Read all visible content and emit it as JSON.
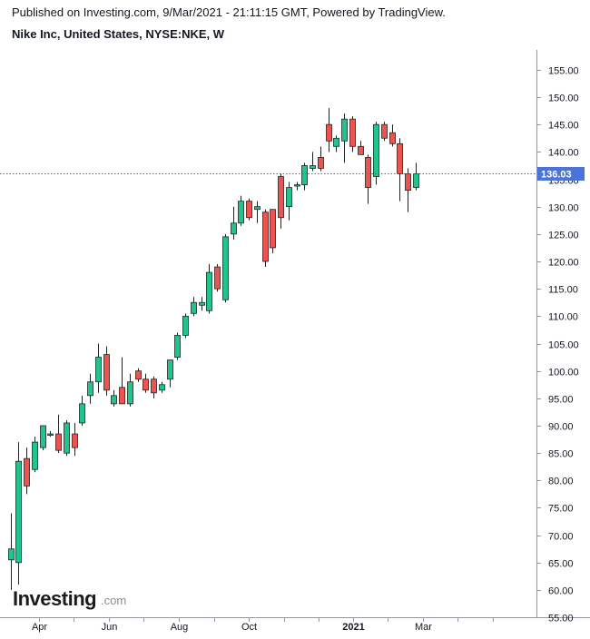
{
  "header": {
    "published": "Published on Investing.com, 9/Mar/2021 - 21:11:15 GMT, Powered by TradingView.",
    "instrument": "Nike Inc, United States, NYSE:NKE, W"
  },
  "watermark": {
    "brand": "Investing",
    "suffix": ".com"
  },
  "colors": {
    "up": "#26a69a",
    "up_fill": "#1fc58a",
    "down_fill": "#ef5350",
    "wick": "#222222",
    "price_line": "#2962ff",
    "price_label_bg": "#4a74d9"
  },
  "chart_data": {
    "type": "candlestick",
    "title": "Nike Inc, United States, NYSE:NKE, W",
    "y_axis": {
      "position": "right",
      "ticks": [
        55,
        60,
        65,
        70,
        75,
        80,
        85,
        90,
        95,
        100,
        105,
        110,
        115,
        120,
        125,
        130,
        135,
        140,
        145,
        150,
        155
      ],
      "ylim": [
        55,
        156
      ]
    },
    "x_axis": {
      "labels": [
        {
          "text": "Apr",
          "week_index": 3.6,
          "bold": false
        },
        {
          "text": "Jun",
          "week_index": 12.4,
          "bold": false
        },
        {
          "text": "Aug",
          "week_index": 21.2,
          "bold": false
        },
        {
          "text": "Oct",
          "week_index": 30.0,
          "bold": false
        },
        {
          "text": "2021",
          "week_index": 43.1,
          "bold": true
        },
        {
          "text": "Mar",
          "week_index": 51.9,
          "bold": false
        }
      ]
    },
    "current_price": 136.03,
    "current_price_label": "136.03",
    "candles": [
      {
        "o": 65.5,
        "h": 74.0,
        "l": 60.0,
        "c": 67.5
      },
      {
        "o": 65.0,
        "h": 87.0,
        "l": 61.0,
        "c": 83.5
      },
      {
        "o": 84.0,
        "h": 86.0,
        "l": 77.5,
        "c": 79.0
      },
      {
        "o": 82.0,
        "h": 88.0,
        "l": 81.5,
        "c": 87.0
      },
      {
        "o": 86.0,
        "h": 90.0,
        "l": 85.5,
        "c": 90.0
      },
      {
        "o": 88.5,
        "h": 89.0,
        "l": 88.0,
        "c": 88.5
      },
      {
        "o": 88.5,
        "h": 92.0,
        "l": 85.0,
        "c": 85.5
      },
      {
        "o": 85.0,
        "h": 91.0,
        "l": 84.5,
        "c": 90.5
      },
      {
        "o": 88.5,
        "h": 90.5,
        "l": 84.5,
        "c": 86.0
      },
      {
        "o": 90.5,
        "h": 95.5,
        "l": 90.0,
        "c": 94.0
      },
      {
        "o": 95.5,
        "h": 99.5,
        "l": 94.0,
        "c": 98.0
      },
      {
        "o": 98.0,
        "h": 105.0,
        "l": 96.0,
        "c": 102.5
      },
      {
        "o": 103.0,
        "h": 104.5,
        "l": 95.5,
        "c": 96.5
      },
      {
        "o": 94.0,
        "h": 96.5,
        "l": 93.5,
        "c": 95.5
      },
      {
        "o": 97.0,
        "h": 102.5,
        "l": 94.0,
        "c": 94.0
      },
      {
        "o": 94.0,
        "h": 99.5,
        "l": 93.5,
        "c": 98.0
      },
      {
        "o": 100.0,
        "h": 100.5,
        "l": 98.0,
        "c": 98.5
      },
      {
        "o": 98.5,
        "h": 99.5,
        "l": 96.0,
        "c": 96.5
      },
      {
        "o": 98.5,
        "h": 99.0,
        "l": 95.0,
        "c": 96.0
      },
      {
        "o": 96.5,
        "h": 98.0,
        "l": 96.0,
        "c": 97.5
      },
      {
        "o": 98.5,
        "h": 102.0,
        "l": 97.0,
        "c": 102.0
      },
      {
        "o": 102.5,
        "h": 107.0,
        "l": 102.0,
        "c": 106.5
      },
      {
        "o": 106.5,
        "h": 110.5,
        "l": 106.0,
        "c": 110.0
      },
      {
        "o": 110.5,
        "h": 113.5,
        "l": 110.0,
        "c": 112.5
      },
      {
        "o": 112.0,
        "h": 113.5,
        "l": 111.0,
        "c": 112.5
      },
      {
        "o": 111.0,
        "h": 119.5,
        "l": 110.5,
        "c": 118.0
      },
      {
        "o": 119.0,
        "h": 119.5,
        "l": 114.5,
        "c": 115.0
      },
      {
        "o": 113.0,
        "h": 125.0,
        "l": 112.5,
        "c": 124.5
      },
      {
        "o": 125.0,
        "h": 130.0,
        "l": 124.0,
        "c": 127.0
      },
      {
        "o": 127.0,
        "h": 132.0,
        "l": 126.5,
        "c": 131.0
      },
      {
        "o": 131.0,
        "h": 131.5,
        "l": 127.5,
        "c": 128.0
      },
      {
        "o": 129.5,
        "h": 131.0,
        "l": 127.0,
        "c": 130.0
      },
      {
        "o": 129.0,
        "h": 129.5,
        "l": 119.0,
        "c": 120.0
      },
      {
        "o": 129.5,
        "h": 129.5,
        "l": 121.5,
        "c": 122.5
      },
      {
        "o": 135.5,
        "h": 136.0,
        "l": 126.0,
        "c": 128.0
      },
      {
        "o": 130.0,
        "h": 134.5,
        "l": 127.5,
        "c": 133.5
      },
      {
        "o": 134.0,
        "h": 134.5,
        "l": 133.0,
        "c": 134.0
      },
      {
        "o": 134.0,
        "h": 138.0,
        "l": 133.0,
        "c": 137.5
      },
      {
        "o": 137.0,
        "h": 140.0,
        "l": 136.5,
        "c": 137.5
      },
      {
        "o": 139.0,
        "h": 141.0,
        "l": 136.5,
        "c": 137.0
      },
      {
        "o": 145.0,
        "h": 148.0,
        "l": 140.0,
        "c": 142.0
      },
      {
        "o": 141.0,
        "h": 143.0,
        "l": 140.0,
        "c": 142.5
      },
      {
        "o": 142.0,
        "h": 147.0,
        "l": 138.0,
        "c": 146.0
      },
      {
        "o": 146.0,
        "h": 146.5,
        "l": 140.0,
        "c": 141.0
      },
      {
        "o": 141.0,
        "h": 142.0,
        "l": 139.5,
        "c": 139.5
      },
      {
        "o": 139.0,
        "h": 139.5,
        "l": 130.5,
        "c": 133.5
      },
      {
        "o": 135.5,
        "h": 145.5,
        "l": 134.0,
        "c": 145.0
      },
      {
        "o": 145.0,
        "h": 145.5,
        "l": 142.0,
        "c": 142.5
      },
      {
        "o": 143.5,
        "h": 145.0,
        "l": 141.0,
        "c": 141.5
      },
      {
        "o": 141.5,
        "h": 142.5,
        "l": 131.0,
        "c": 136.0
      },
      {
        "o": 136.0,
        "h": 137.0,
        "l": 129.0,
        "c": 133.0
      },
      {
        "o": 133.5,
        "h": 138.0,
        "l": 133.0,
        "c": 136.0
      }
    ]
  }
}
